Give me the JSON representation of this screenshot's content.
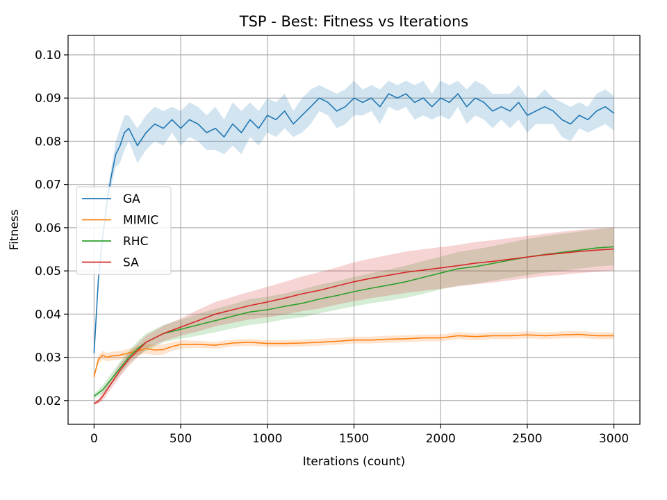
{
  "chart_data": {
    "type": "line",
    "title": "TSP - Best: Fitness vs Iterations",
    "xlabel": "Iterations (count)",
    "ylabel": "Fitness",
    "xlim": [
      -150,
      3150
    ],
    "ylim": [
      0.0145,
      0.1045
    ],
    "xticks": [
      0,
      500,
      1000,
      1500,
      2000,
      2500,
      3000
    ],
    "yticks": [
      0.02,
      0.03,
      0.04,
      0.05,
      0.06,
      0.07,
      0.08,
      0.09,
      0.1
    ],
    "xtick_labels": [
      "0",
      "500",
      "1000",
      "1500",
      "2000",
      "2500",
      "3000"
    ],
    "ytick_labels": [
      "0.02",
      "0.03",
      "0.04",
      "0.05",
      "0.06",
      "0.07",
      "0.08",
      "0.09",
      "0.10"
    ],
    "grid": true,
    "legend_position": "center-left",
    "shaded_band": "mean ± spread",
    "series": [
      {
        "name": "GA",
        "color": "#1f77b4",
        "x": [
          0,
          25,
          50,
          75,
          100,
          125,
          150,
          175,
          200,
          250,
          300,
          350,
          400,
          450,
          500,
          550,
          600,
          650,
          700,
          750,
          800,
          850,
          900,
          950,
          1000,
          1050,
          1100,
          1150,
          1200,
          1250,
          1300,
          1350,
          1400,
          1450,
          1500,
          1550,
          1600,
          1650,
          1700,
          1750,
          1800,
          1850,
          1900,
          1950,
          2000,
          2050,
          2100,
          2150,
          2200,
          2250,
          2300,
          2350,
          2400,
          2450,
          2500,
          2550,
          2600,
          2650,
          2700,
          2750,
          2800,
          2850,
          2900,
          2950,
          3000
        ],
        "y": [
          0.031,
          0.048,
          0.058,
          0.066,
          0.072,
          0.077,
          0.079,
          0.082,
          0.083,
          0.079,
          0.082,
          0.084,
          0.083,
          0.085,
          0.083,
          0.085,
          0.084,
          0.082,
          0.083,
          0.081,
          0.084,
          0.082,
          0.085,
          0.083,
          0.086,
          0.085,
          0.087,
          0.084,
          0.086,
          0.088,
          0.09,
          0.089,
          0.087,
          0.088,
          0.09,
          0.089,
          0.09,
          0.088,
          0.091,
          0.09,
          0.091,
          0.089,
          0.09,
          0.088,
          0.09,
          0.089,
          0.091,
          0.088,
          0.09,
          0.089,
          0.087,
          0.088,
          0.087,
          0.089,
          0.086,
          0.087,
          0.088,
          0.087,
          0.085,
          0.084,
          0.086,
          0.085,
          0.087,
          0.088,
          0.0865
        ],
        "band": [
          0.0,
          0.0,
          0.001,
          0.002,
          0.002,
          0.003,
          0.004,
          0.004,
          0.003,
          0.004,
          0.004,
          0.004,
          0.004,
          0.003,
          0.004,
          0.004,
          0.004,
          0.004,
          0.005,
          0.004,
          0.005,
          0.005,
          0.004,
          0.004,
          0.004,
          0.004,
          0.004,
          0.003,
          0.004,
          0.004,
          0.003,
          0.003,
          0.004,
          0.004,
          0.004,
          0.003,
          0.003,
          0.004,
          0.003,
          0.003,
          0.003,
          0.004,
          0.004,
          0.003,
          0.004,
          0.004,
          0.003,
          0.004,
          0.004,
          0.004,
          0.004,
          0.003,
          0.004,
          0.004,
          0.004,
          0.003,
          0.004,
          0.003,
          0.004,
          0.004,
          0.003,
          0.003,
          0.004,
          0.004,
          0.004
        ]
      },
      {
        "name": "MIMIC",
        "color": "#ff7f0e",
        "x": [
          0,
          25,
          50,
          75,
          100,
          150,
          200,
          250,
          300,
          350,
          400,
          450,
          500,
          600,
          700,
          800,
          900,
          1000,
          1100,
          1200,
          1300,
          1400,
          1500,
          1600,
          1700,
          1800,
          1900,
          2000,
          2100,
          2200,
          2300,
          2400,
          2500,
          2600,
          2700,
          2800,
          2900,
          3000
        ],
        "y": [
          0.0255,
          0.0295,
          0.0305,
          0.03,
          0.0303,
          0.0305,
          0.031,
          0.0315,
          0.032,
          0.0317,
          0.0318,
          0.0325,
          0.033,
          0.033,
          0.0328,
          0.0333,
          0.0335,
          0.0332,
          0.0332,
          0.0333,
          0.0335,
          0.0337,
          0.034,
          0.034,
          0.0342,
          0.0343,
          0.0345,
          0.0345,
          0.035,
          0.0348,
          0.035,
          0.035,
          0.0352,
          0.035,
          0.0352,
          0.0353,
          0.035,
          0.035
        ],
        "band": [
          0.0,
          0.001,
          0.001,
          0.001,
          0.001,
          0.001,
          0.001,
          0.001,
          0.0012,
          0.0012,
          0.0012,
          0.001,
          0.001,
          0.0008,
          0.0008,
          0.0008,
          0.0008,
          0.0008,
          0.0008,
          0.0008,
          0.0008,
          0.0008,
          0.0008,
          0.0008,
          0.0008,
          0.0008,
          0.0008,
          0.0008,
          0.0008,
          0.0008,
          0.0008,
          0.0008,
          0.0008,
          0.0008,
          0.0008,
          0.0008,
          0.0008,
          0.0008
        ]
      },
      {
        "name": "RHC",
        "color": "#2ca02c",
        "x": [
          0,
          50,
          100,
          150,
          200,
          250,
          300,
          400,
          500,
          600,
          700,
          800,
          900,
          1000,
          1100,
          1200,
          1300,
          1400,
          1500,
          1600,
          1700,
          1800,
          1900,
          2000,
          2100,
          2200,
          2300,
          2400,
          2500,
          2600,
          2700,
          2800,
          2900,
          3000
        ],
        "y": [
          0.021,
          0.0225,
          0.025,
          0.0275,
          0.03,
          0.032,
          0.0335,
          0.0355,
          0.0365,
          0.0375,
          0.0385,
          0.0395,
          0.0405,
          0.041,
          0.0418,
          0.0425,
          0.0435,
          0.0443,
          0.0452,
          0.046,
          0.0467,
          0.0475,
          0.0485,
          0.0495,
          0.0505,
          0.051,
          0.0517,
          0.0525,
          0.0532,
          0.0538,
          0.0543,
          0.0548,
          0.0553,
          0.0556
        ],
        "band": [
          0.0005,
          0.001,
          0.0013,
          0.0015,
          0.0015,
          0.0017,
          0.002,
          0.002,
          0.0022,
          0.0025,
          0.0027,
          0.0028,
          0.003,
          0.003,
          0.003,
          0.0032,
          0.0033,
          0.0033,
          0.0034,
          0.0035,
          0.0036,
          0.0037,
          0.0038,
          0.0038,
          0.0039,
          0.004,
          0.004,
          0.0041,
          0.0042,
          0.0042,
          0.0043,
          0.0043,
          0.0043,
          0.0043
        ]
      },
      {
        "name": "SA",
        "color": "#d62728",
        "x": [
          0,
          25,
          50,
          100,
          150,
          200,
          250,
          300,
          400,
          500,
          600,
          700,
          800,
          900,
          1000,
          1100,
          1200,
          1300,
          1400,
          1500,
          1600,
          1700,
          1800,
          1900,
          2000,
          2100,
          2200,
          2300,
          2400,
          2500,
          2600,
          2700,
          2800,
          2900,
          3000
        ],
        "y": [
          0.0193,
          0.0198,
          0.021,
          0.024,
          0.027,
          0.0295,
          0.0315,
          0.0335,
          0.0355,
          0.037,
          0.0385,
          0.04,
          0.041,
          0.042,
          0.0428,
          0.0437,
          0.0447,
          0.0455,
          0.0465,
          0.0475,
          0.0483,
          0.049,
          0.0497,
          0.0502,
          0.0507,
          0.0512,
          0.0518,
          0.0522,
          0.0527,
          0.0532,
          0.0537,
          0.0541,
          0.0545,
          0.0548,
          0.0551
        ],
        "band": [
          0.0003,
          0.0005,
          0.001,
          0.0012,
          0.0015,
          0.0015,
          0.0015,
          0.0015,
          0.0018,
          0.002,
          0.0025,
          0.0028,
          0.003,
          0.0032,
          0.0035,
          0.0038,
          0.004,
          0.0042,
          0.0043,
          0.0045,
          0.0046,
          0.0047,
          0.0048,
          0.0048,
          0.0048,
          0.0048,
          0.0049,
          0.0049,
          0.0049,
          0.0049,
          0.0049,
          0.005,
          0.005,
          0.005,
          0.005
        ]
      }
    ]
  }
}
